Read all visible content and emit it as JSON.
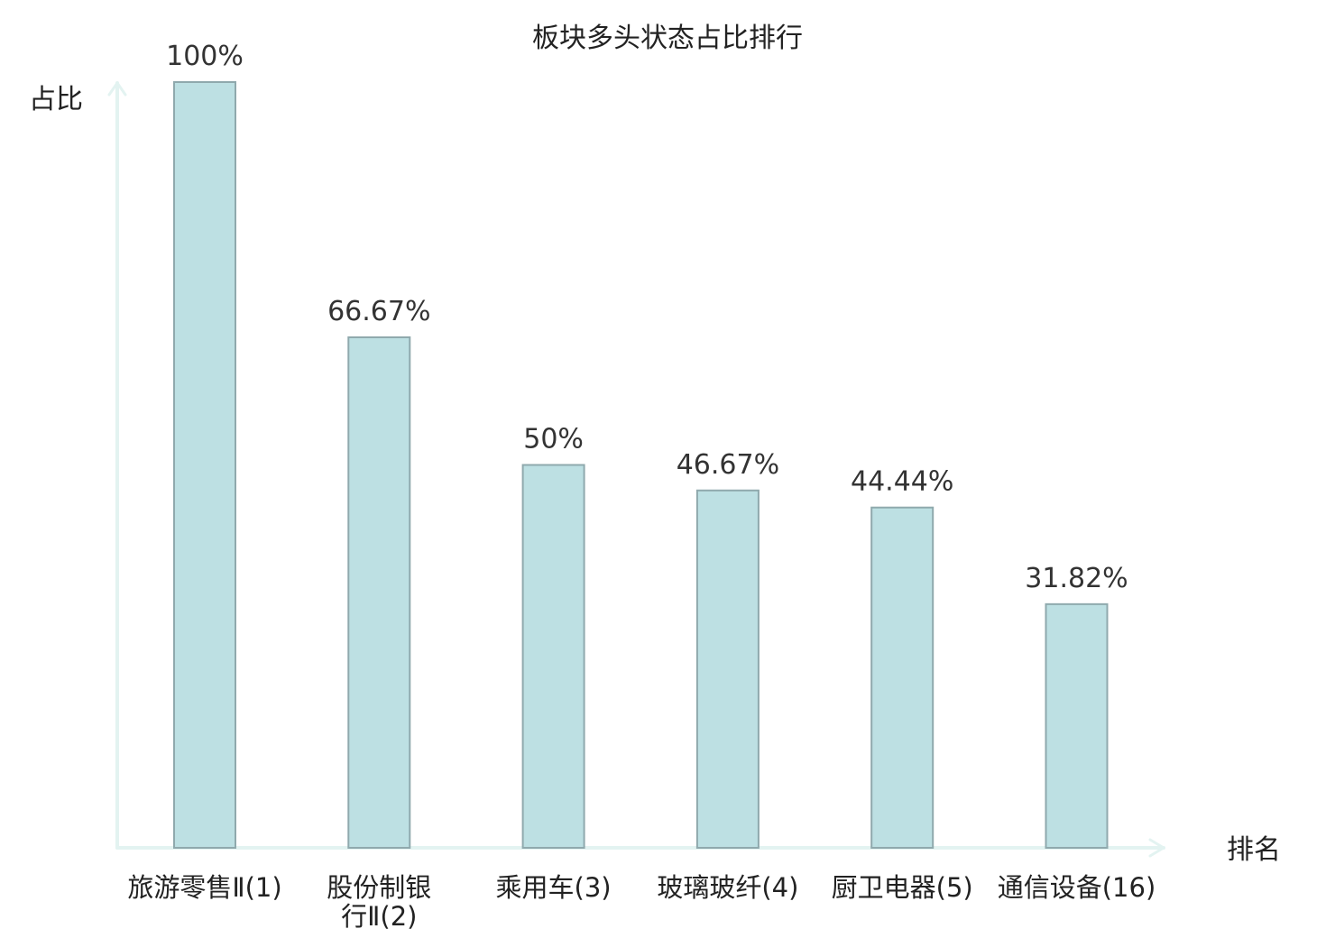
{
  "chart_data": {
    "type": "bar",
    "title": "板块多头状态占比排行",
    "ylabel": "占比",
    "xlabel": "排名",
    "ylim": [
      0,
      100
    ],
    "grid": false,
    "categories": [
      {
        "name": "旅游零售",
        "suffix": "Ⅱ(1)",
        "highlight": false
      },
      {
        "name": "股份制银",
        "suffix": "行Ⅱ(2)",
        "highlight": false
      },
      {
        "name": "乘用车",
        "suffix": "(3)",
        "highlight": false
      },
      {
        "name": "玻璃玻纤",
        "suffix": "(4)",
        "highlight": false
      },
      {
        "name": "厨卫电器",
        "suffix": "(5)",
        "highlight": false
      },
      {
        "name": "通信设备",
        "suffix": "(16)",
        "highlight": true
      }
    ],
    "values": [
      100,
      66.67,
      50,
      46.67,
      44.44,
      31.82
    ],
    "value_labels": [
      "100%",
      "66.67%",
      "50%",
      "46.67%",
      "44.44%",
      "31.82%"
    ],
    "colors": {
      "bar_fill": "#bde0e3",
      "bar_stroke": "#8fa9ad",
      "axis": "#e3f3f1",
      "highlight": "#e31a1a",
      "label": "#222222"
    }
  }
}
